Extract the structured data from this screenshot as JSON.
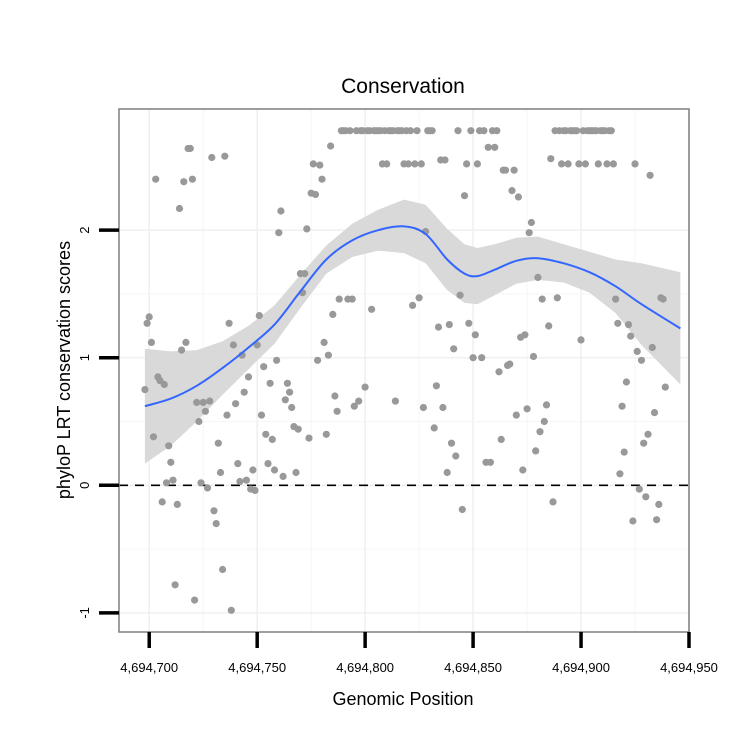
{
  "chart_data": {
    "type": "scatter",
    "title": "Conservation",
    "xlabel": "Genomic Position",
    "ylabel": "phyloP LRT conservation scores",
    "xlim": [
      4694686,
      4694950
    ],
    "ylim": [
      -1.15,
      2.95
    ],
    "x_ticks": [
      4694700,
      4694750,
      4694800,
      4694850,
      4694900,
      4694950
    ],
    "x_tick_labels": [
      "4,694,700",
      "4,694,750",
      "4,694,800",
      "4,694,850",
      "4,694,900",
      "4,694,950"
    ],
    "y_ticks": [
      -1,
      0,
      1,
      2
    ],
    "y_tick_labels": [
      "-1",
      "0",
      "1",
      "2"
    ],
    "grid": true,
    "reference_line": {
      "y": 0,
      "style": "dashed",
      "color": "#000000"
    },
    "points_color": "#999999",
    "smooth_color": "#3366FF",
    "band_color": "#D9D9D9",
    "points": [
      [
        4694698,
        0.75
      ],
      [
        4694699,
        1.27
      ],
      [
        4694700,
        1.32
      ],
      [
        4694701,
        1.12
      ],
      [
        4694702,
        0.38
      ],
      [
        4694703,
        2.4
      ],
      [
        4694704,
        0.85
      ],
      [
        4694705,
        0.82
      ],
      [
        4694706,
        -0.13
      ],
      [
        4694707,
        0.79
      ],
      [
        4694708,
        0.02
      ],
      [
        4694709,
        0.31
      ],
      [
        4694710,
        0.18
      ],
      [
        4694711,
        0.04
      ],
      [
        4694712,
        -0.78
      ],
      [
        4694713,
        -0.15
      ],
      [
        4694714,
        2.17
      ],
      [
        4694715,
        1.06
      ],
      [
        4694716,
        2.38
      ],
      [
        4694717,
        1.12
      ],
      [
        4694718,
        2.64
      ],
      [
        4694719,
        2.64
      ],
      [
        4694720,
        2.4
      ],
      [
        4694721,
        -0.9
      ],
      [
        4694722,
        0.65
      ],
      [
        4694723,
        0.5
      ],
      [
        4694724,
        0.02
      ],
      [
        4694725,
        0.65
      ],
      [
        4694726,
        0.58
      ],
      [
        4694727,
        -0.02
      ],
      [
        4694728,
        0.66
      ],
      [
        4694729,
        2.57
      ],
      [
        4694730,
        -0.2
      ],
      [
        4694731,
        -0.3
      ],
      [
        4694732,
        0.33
      ],
      [
        4694733,
        0.1
      ],
      [
        4694734,
        -0.66
      ],
      [
        4694735,
        2.58
      ],
      [
        4694736,
        0.55
      ],
      [
        4694737,
        1.27
      ],
      [
        4694738,
        -0.98
      ],
      [
        4694739,
        1.1
      ],
      [
        4694740,
        0.64
      ],
      [
        4694741,
        0.17
      ],
      [
        4694742,
        0.03
      ],
      [
        4694743,
        1.02
      ],
      [
        4694744,
        0.73
      ],
      [
        4694745,
        0.04
      ],
      [
        4694746,
        0.85
      ],
      [
        4694747,
        -0.03
      ],
      [
        4694748,
        0.12
      ],
      [
        4694749,
        -0.04
      ],
      [
        4694750,
        1.1
      ],
      [
        4694751,
        1.33
      ],
      [
        4694752,
        0.55
      ],
      [
        4694753,
        0.93
      ],
      [
        4694754,
        0.4
      ],
      [
        4694755,
        0.17
      ],
      [
        4694756,
        0.8
      ],
      [
        4694757,
        0.36
      ],
      [
        4694758,
        0.12
      ],
      [
        4694759,
        0.98
      ],
      [
        4694760,
        1.98
      ],
      [
        4694761,
        2.15
      ],
      [
        4694762,
        0.07
      ],
      [
        4694763,
        0.67
      ],
      [
        4694764,
        0.8
      ],
      [
        4694765,
        0.73
      ],
      [
        4694766,
        0.61
      ],
      [
        4694767,
        0.46
      ],
      [
        4694768,
        0.1
      ],
      [
        4694769,
        0.44
      ],
      [
        4694770,
        1.66
      ],
      [
        4694771,
        1.51
      ],
      [
        4694772,
        1.66
      ],
      [
        4694773,
        2.01
      ],
      [
        4694774,
        0.37
      ],
      [
        4694775,
        2.29
      ],
      [
        4694776,
        2.52
      ],
      [
        4694777,
        2.28
      ],
      [
        4694778,
        0.98
      ],
      [
        4694779,
        2.51
      ],
      [
        4694780,
        2.4
      ],
      [
        4694781,
        1.12
      ],
      [
        4694782,
        0.4
      ],
      [
        4694783,
        1.02
      ],
      [
        4694784,
        2.66
      ],
      [
        4694785,
        1.34
      ],
      [
        4694786,
        0.7
      ],
      [
        4694787,
        0.58
      ],
      [
        4694788,
        1.46
      ],
      [
        4694789,
        2.78
      ],
      [
        4694790,
        2.78
      ],
      [
        4694791,
        2.78
      ],
      [
        4694792,
        1.46
      ],
      [
        4694793,
        2.78
      ],
      [
        4694794,
        1.46
      ],
      [
        4694795,
        0.62
      ],
      [
        4694796,
        2.78
      ],
      [
        4694797,
        0.66
      ],
      [
        4694798,
        2.78
      ],
      [
        4694799,
        2.78
      ],
      [
        4694800,
        0.77
      ],
      [
        4694801,
        2.78
      ],
      [
        4694802,
        2.78
      ],
      [
        4694803,
        1.38
      ],
      [
        4694804,
        2.78
      ],
      [
        4694805,
        2.78
      ],
      [
        4694806,
        2.78
      ],
      [
        4694807,
        2.78
      ],
      [
        4694808,
        2.52
      ],
      [
        4694809,
        2.78
      ],
      [
        4694810,
        2.52
      ],
      [
        4694811,
        2.78
      ],
      [
        4694812,
        2.78
      ],
      [
        4694813,
        2.78
      ],
      [
        4694814,
        0.66
      ],
      [
        4694815,
        2.78
      ],
      [
        4694816,
        2.78
      ],
      [
        4694817,
        2.78
      ],
      [
        4694818,
        2.52
      ],
      [
        4694819,
        2.78
      ],
      [
        4694820,
        2.52
      ],
      [
        4694821,
        2.78
      ],
      [
        4694822,
        1.41
      ],
      [
        4694823,
        2.52
      ],
      [
        4694824,
        2.78
      ],
      [
        4694825,
        1.47
      ],
      [
        4694826,
        2.52
      ],
      [
        4694827,
        0.61
      ],
      [
        4694828,
        1.99
      ],
      [
        4694829,
        2.78
      ],
      [
        4694830,
        2.78
      ],
      [
        4694831,
        2.78
      ],
      [
        4694832,
        0.45
      ],
      [
        4694833,
        0.78
      ],
      [
        4694834,
        1.24
      ],
      [
        4694835,
        2.55
      ],
      [
        4694836,
        0.61
      ],
      [
        4694837,
        2.55
      ],
      [
        4694838,
        0.1
      ],
      [
        4694839,
        1.26
      ],
      [
        4694840,
        0.33
      ],
      [
        4694841,
        1.07
      ],
      [
        4694842,
        0.23
      ],
      [
        4694843,
        2.78
      ],
      [
        4694844,
        1.49
      ],
      [
        4694845,
        -0.19
      ],
      [
        4694846,
        2.27
      ],
      [
        4694847,
        2.52
      ],
      [
        4694848,
        1.27
      ],
      [
        4694849,
        2.78
      ],
      [
        4694850,
        1.0
      ],
      [
        4694851,
        1.18
      ],
      [
        4694852,
        2.52
      ],
      [
        4694853,
        2.78
      ],
      [
        4694854,
        1.0
      ],
      [
        4694855,
        2.78
      ],
      [
        4694856,
        0.18
      ],
      [
        4694857,
        2.65
      ],
      [
        4694858,
        0.18
      ],
      [
        4694859,
        2.78
      ],
      [
        4694860,
        2.65
      ],
      [
        4694861,
        2.78
      ],
      [
        4694862,
        0.89
      ],
      [
        4694863,
        0.36
      ],
      [
        4694864,
        2.47
      ],
      [
        4694865,
        2.47
      ],
      [
        4694866,
        0.94
      ],
      [
        4694867,
        0.95
      ],
      [
        4694868,
        2.31
      ],
      [
        4694869,
        2.47
      ],
      [
        4694870,
        0.55
      ],
      [
        4694871,
        2.26
      ],
      [
        4694872,
        1.16
      ],
      [
        4694873,
        0.12
      ],
      [
        4694874,
        1.18
      ],
      [
        4694875,
        0.6
      ],
      [
        4694876,
        1.98
      ],
      [
        4694877,
        2.06
      ],
      [
        4694878,
        1.01
      ],
      [
        4694879,
        0.27
      ],
      [
        4694880,
        1.63
      ],
      [
        4694881,
        0.42
      ],
      [
        4694882,
        1.46
      ],
      [
        4694883,
        0.5
      ],
      [
        4694884,
        0.63
      ],
      [
        4694885,
        1.25
      ],
      [
        4694886,
        2.56
      ],
      [
        4694887,
        -0.13
      ],
      [
        4694888,
        2.78
      ],
      [
        4694889,
        1.47
      ],
      [
        4694890,
        2.78
      ],
      [
        4694891,
        2.52
      ],
      [
        4694892,
        2.78
      ],
      [
        4694893,
        2.78
      ],
      [
        4694894,
        2.52
      ],
      [
        4694895,
        2.78
      ],
      [
        4694896,
        2.78
      ],
      [
        4694897,
        2.78
      ],
      [
        4694898,
        2.78
      ],
      [
        4694899,
        2.52
      ],
      [
        4694900,
        1.14
      ],
      [
        4694901,
        2.78
      ],
      [
        4694902,
        2.52
      ],
      [
        4694903,
        2.78
      ],
      [
        4694904,
        2.78
      ],
      [
        4694905,
        2.78
      ],
      [
        4694906,
        2.78
      ],
      [
        4694907,
        2.78
      ],
      [
        4694908,
        2.52
      ],
      [
        4694909,
        2.78
      ],
      [
        4694910,
        2.78
      ],
      [
        4694911,
        2.78
      ],
      [
        4694912,
        2.52
      ],
      [
        4694913,
        2.78
      ],
      [
        4694914,
        2.78
      ],
      [
        4694915,
        2.52
      ],
      [
        4694916,
        1.46
      ],
      [
        4694917,
        1.27
      ],
      [
        4694918,
        0.09
      ],
      [
        4694919,
        0.62
      ],
      [
        4694920,
        0.26
      ],
      [
        4694921,
        0.81
      ],
      [
        4694922,
        1.26
      ],
      [
        4694923,
        1.17
      ],
      [
        4694924,
        -0.28
      ],
      [
        4694925,
        2.52
      ],
      [
        4694926,
        1.05
      ],
      [
        4694927,
        -0.03
      ],
      [
        4694928,
        0.98
      ],
      [
        4694929,
        0.33
      ],
      [
        4694930,
        -0.09
      ],
      [
        4694931,
        0.4
      ],
      [
        4694932,
        2.43
      ],
      [
        4694933,
        1.08
      ],
      [
        4694934,
        0.57
      ],
      [
        4694935,
        -0.27
      ],
      [
        4694936,
        -0.15
      ],
      [
        4694937,
        1.47
      ],
      [
        4694938,
        1.46
      ],
      [
        4694939,
        0.77
      ]
    ],
    "smooth_x": [
      4694698,
      4694710,
      4694722,
      4694734,
      4694746,
      4694758,
      4694770,
      4694782,
      4694794,
      4694806,
      4694818,
      4694828,
      4694838,
      4694846,
      4694852,
      4694860,
      4694870,
      4694880,
      4694892,
      4694904,
      4694916,
      4694928,
      4694946
    ],
    "smooth_y": [
      0.62,
      0.68,
      0.78,
      0.92,
      1.08,
      1.26,
      1.52,
      1.77,
      1.92,
      2.0,
      2.03,
      1.97,
      1.77,
      1.66,
      1.64,
      1.69,
      1.76,
      1.78,
      1.74,
      1.67,
      1.56,
      1.42,
      1.23
    ],
    "band_upper": [
      1.07,
      1.05,
      1.06,
      1.13,
      1.25,
      1.41,
      1.65,
      1.88,
      2.05,
      2.16,
      2.24,
      2.2,
      2.01,
      1.89,
      1.86,
      1.89,
      1.94,
      1.95,
      1.89,
      1.83,
      1.77,
      1.74,
      1.67
    ],
    "band_lower": [
      0.17,
      0.31,
      0.5,
      0.71,
      0.91,
      1.11,
      1.39,
      1.66,
      1.79,
      1.84,
      1.82,
      1.74,
      1.53,
      1.43,
      1.42,
      1.49,
      1.58,
      1.61,
      1.59,
      1.51,
      1.35,
      1.1,
      0.79
    ]
  }
}
